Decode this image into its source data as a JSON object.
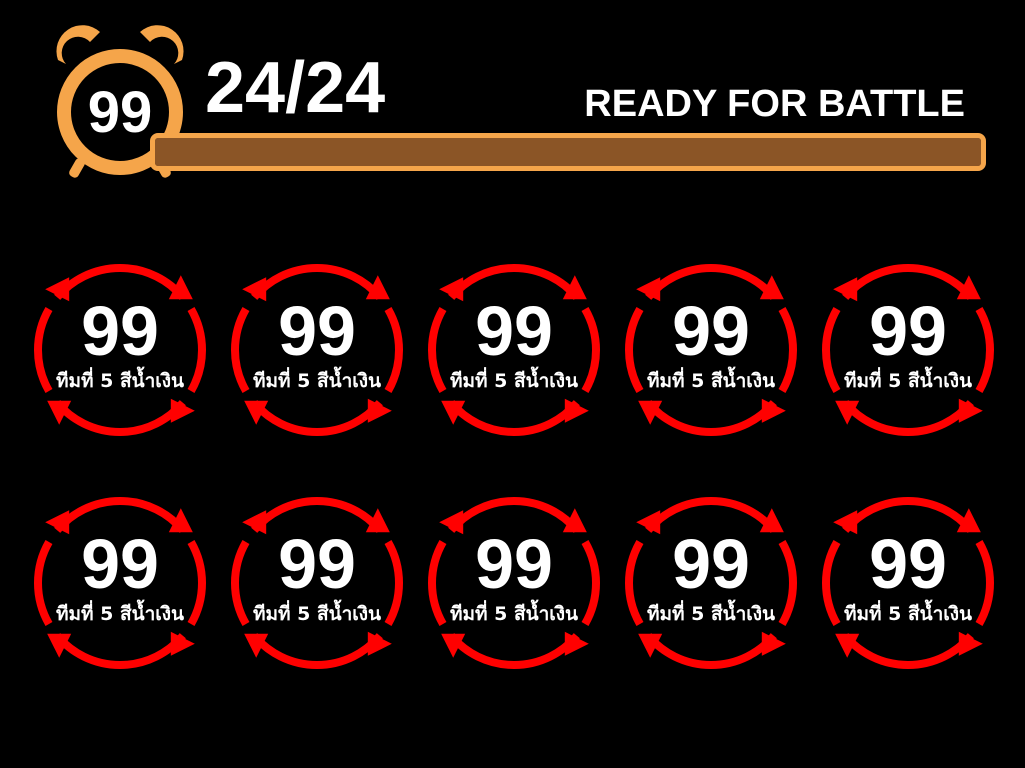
{
  "header": {
    "clock_value": "99",
    "counter": "24/24",
    "status": "READY FOR BATTLE",
    "progress_fraction": 1.0
  },
  "colors": {
    "accent_orange": "#f5a54a",
    "progress_brown": "#8b5526",
    "ring_red": "#ff0000",
    "background": "#000000",
    "text": "#ffffff"
  },
  "teams": [
    {
      "value": "99",
      "label": "ทีมที่ 5 สีน้ำเงิน"
    },
    {
      "value": "99",
      "label": "ทีมที่ 5 สีน้ำเงิน"
    },
    {
      "value": "99",
      "label": "ทีมที่ 5 สีน้ำเงิน"
    },
    {
      "value": "99",
      "label": "ทีมที่ 5 สีน้ำเงิน"
    },
    {
      "value": "99",
      "label": "ทีมที่ 5 สีน้ำเงิน"
    },
    {
      "value": "99",
      "label": "ทีมที่ 5 สีน้ำเงิน"
    },
    {
      "value": "99",
      "label": "ทีมที่ 5 สีน้ำเงิน"
    },
    {
      "value": "99",
      "label": "ทีมที่ 5 สีน้ำเงิน"
    },
    {
      "value": "99",
      "label": "ทีมที่ 5 สีน้ำเงิน"
    },
    {
      "value": "99",
      "label": "ทีมที่ 5 สีน้ำเงิน"
    }
  ]
}
